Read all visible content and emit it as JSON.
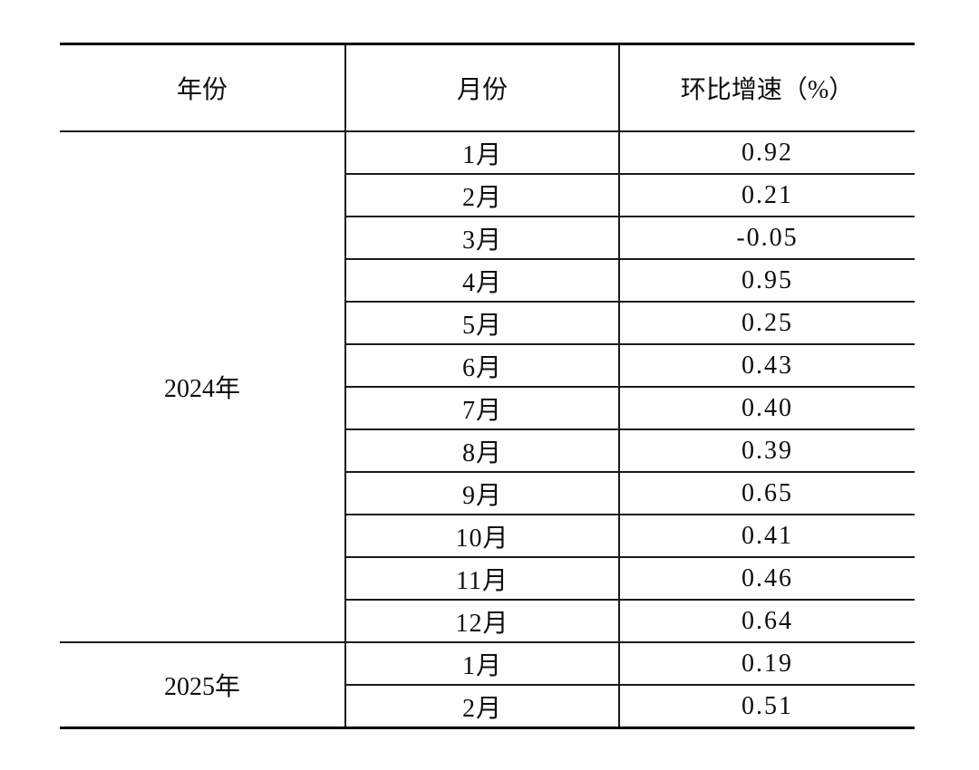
{
  "table": {
    "columns": [
      {
        "label": "年份"
      },
      {
        "label": "月份"
      },
      {
        "label": "环比增速（%）"
      }
    ],
    "groups": [
      {
        "year": "2024年",
        "rows": [
          [
            "1月",
            "0.92"
          ],
          [
            "2月",
            "0.21"
          ],
          [
            "3月",
            "-0.05"
          ],
          [
            "4月",
            "0.95"
          ],
          [
            "5月",
            "0.25"
          ],
          [
            "6月",
            "0.43"
          ],
          [
            "7月",
            "0.40"
          ],
          [
            "8月",
            "0.39"
          ],
          [
            "9月",
            "0.65"
          ],
          [
            "10月",
            "0.41"
          ],
          [
            "11月",
            "0.46"
          ],
          [
            "12月",
            "0.64"
          ]
        ]
      },
      {
        "year": "2025年",
        "rows": [
          [
            "1月",
            "0.19"
          ],
          [
            "2月",
            "0.51"
          ]
        ]
      }
    ],
    "style": {
      "text_color": "#0d0d0d",
      "rule_color": "#1a1a1a",
      "outer_rule_color": "#000000",
      "background": "#ffffff"
    }
  }
}
